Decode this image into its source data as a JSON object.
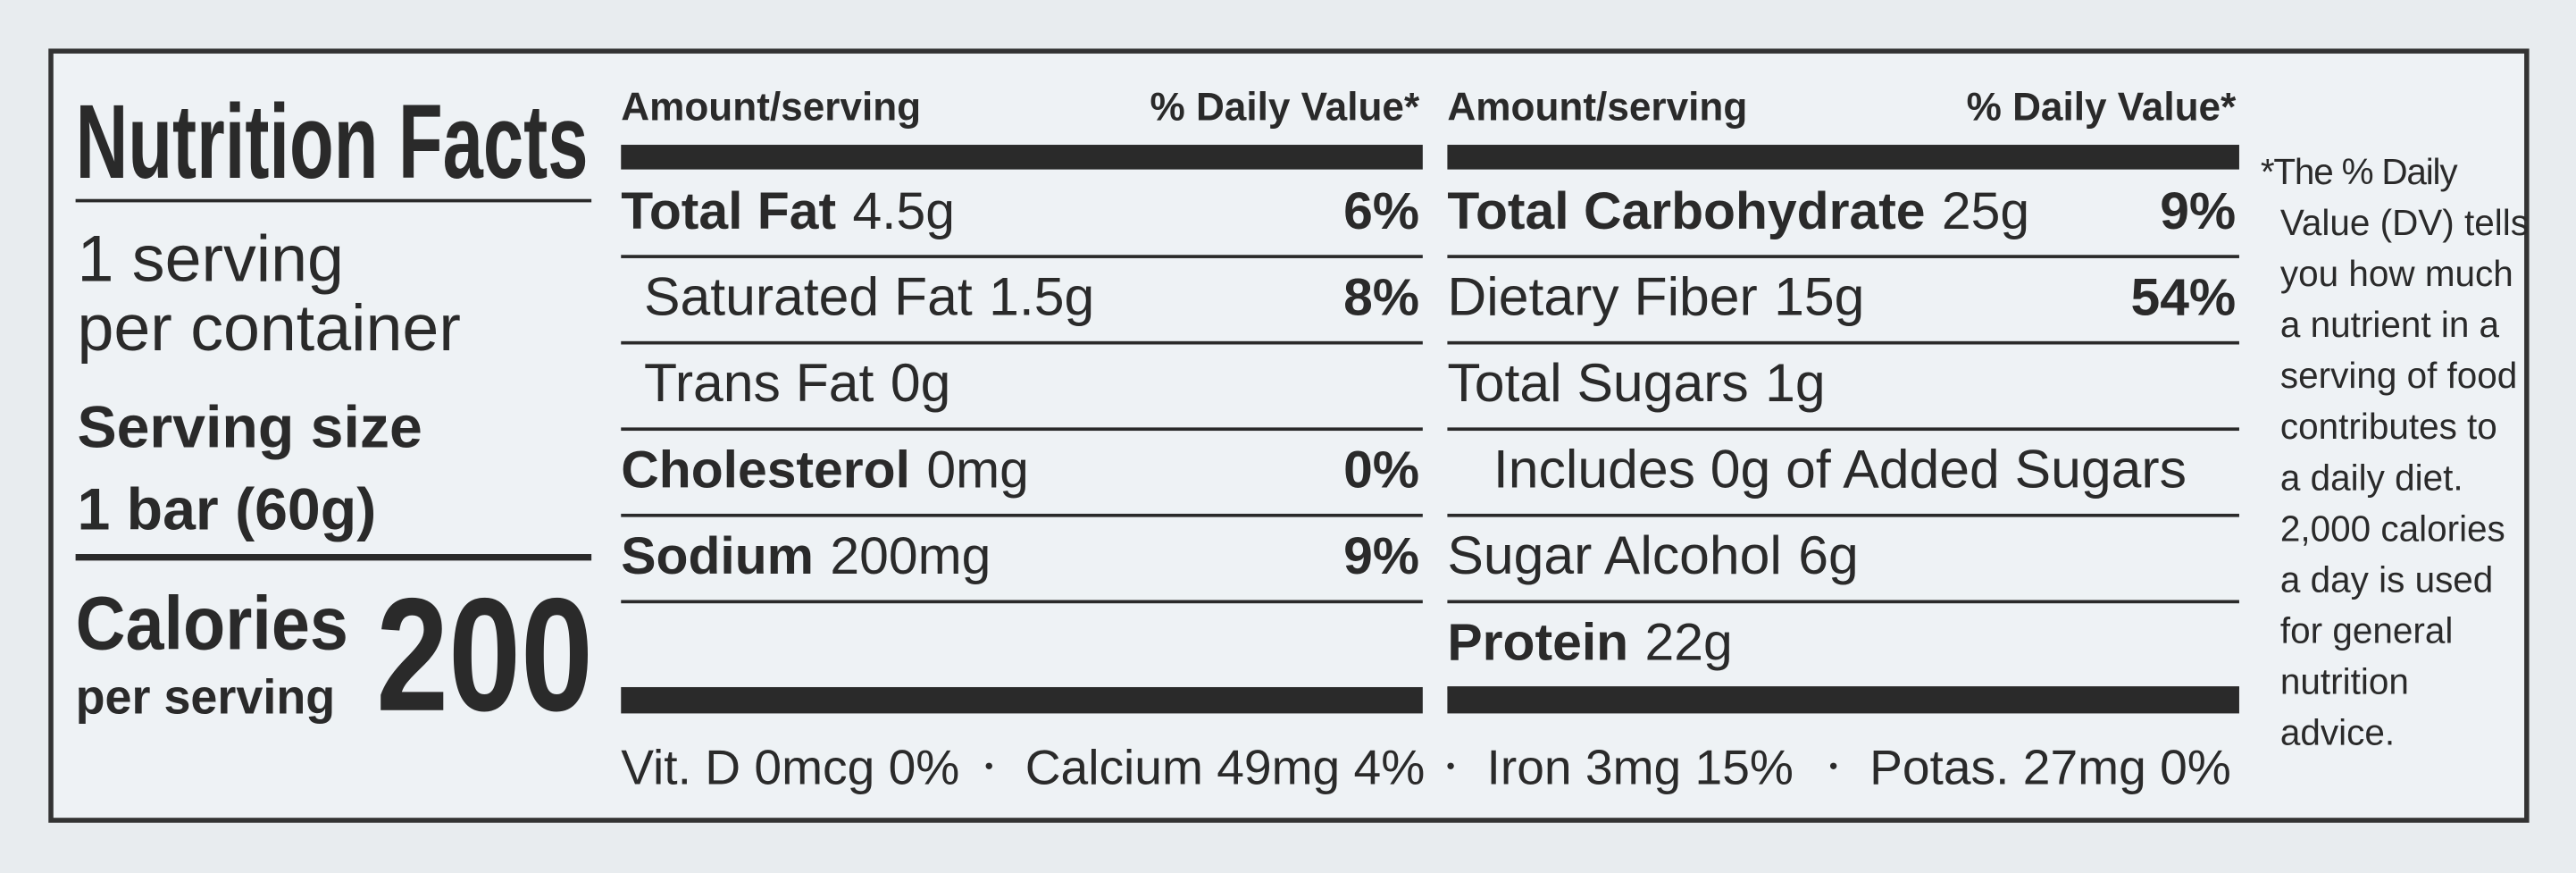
{
  "title": "Nutrition Facts",
  "servings": [
    "1 serving",
    "per container"
  ],
  "serving_size": {
    "label": "Serving size",
    "value": "1 bar (60g)"
  },
  "calories": {
    "label": "Calories",
    "sublabel": "per serving",
    "value": "200"
  },
  "columns": [
    {
      "header": {
        "amount": "Amount/serving",
        "dv": "% Daily Value*"
      },
      "rows": [
        {
          "name": "Total Fat",
          "amount": "4.5g",
          "dv": "6%",
          "bold": true,
          "indent": 0
        },
        {
          "name": "Saturated Fat",
          "amount": "1.5g",
          "dv": "8%",
          "bold": false,
          "indent": 1
        },
        {
          "name": "Trans Fat",
          "amount": "0g",
          "bold": false,
          "indent": 1
        },
        {
          "name": "Cholesterol",
          "amount": "0mg",
          "dv": "0%",
          "bold": true,
          "indent": 0
        },
        {
          "name": "Sodium",
          "amount": "200mg",
          "dv": "9%",
          "bold": true,
          "indent": 0
        }
      ]
    },
    {
      "header": {
        "amount": "Amount/serving",
        "dv": "% Daily Value*"
      },
      "rows": [
        {
          "name": "Total Carbohydrate",
          "amount": "25g",
          "dv": "9%",
          "bold": true,
          "indent": 0
        },
        {
          "name": "Dietary Fiber",
          "amount": "15g",
          "dv": "54%",
          "bold": false,
          "indent": 0
        },
        {
          "name": "Total Sugars",
          "amount": "1g",
          "bold": false,
          "indent": 0
        },
        {
          "name": "Includes 0g of Added Sugars",
          "bold": false,
          "indent": 1
        },
        {
          "name": "Sugar Alcohol",
          "amount": "6g",
          "bold": false,
          "indent": 0
        },
        {
          "name": "Protein",
          "amount": "22g",
          "bold": true,
          "indent": 0
        }
      ]
    }
  ],
  "vitamins": [
    "Vit. D  0mcg  0%",
    "Calcium  49mg  4%",
    "Iron  3mg  15%",
    "Potas.  27mg  0%"
  ],
  "footnote": [
    "*The % Daily",
    "Value (DV) tells",
    "you how much",
    "a nutrient in a",
    "serving of food",
    "contributes to",
    "a daily diet.",
    "2,000 calories",
    "a day is used",
    "for general",
    "nutrition",
    "advice."
  ]
}
